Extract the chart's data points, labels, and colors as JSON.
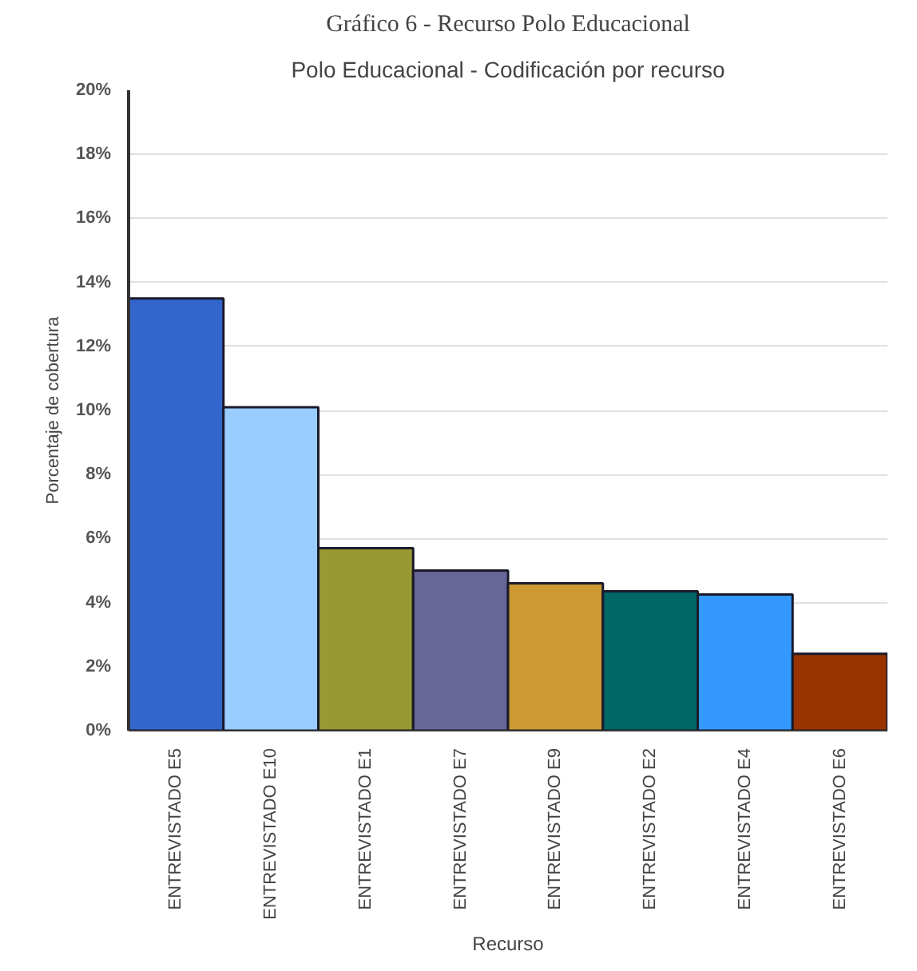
{
  "chart_data": {
    "type": "bar",
    "title": "Polo Educacional - Codificación por recurso",
    "annotations": [
      "Gráfico 6 - Recurso Polo Educacional"
    ],
    "xlabel": "Recurso",
    "ylabel": "Porcentaje de cobertura",
    "categories": [
      "ENTREVISTADO E5",
      "ENTREVISTADO E10",
      "ENTREVISTADO E1",
      "ENTREVISTADO E7",
      "ENTREVISTADO E9",
      "ENTREVISTADO E2",
      "ENTREVISTADO E4",
      "ENTREVISTADO E6"
    ],
    "values": [
      13.5,
      10.1,
      5.7,
      5.0,
      4.6,
      4.35,
      4.25,
      2.4
    ],
    "colors": [
      "#3366cc",
      "#99ccff",
      "#999933",
      "#666699",
      "#cc9933",
      "#006666",
      "#3399ff",
      "#993300"
    ],
    "ylim": [
      0,
      20
    ],
    "yticks": [
      {
        "value": 0,
        "label": "0%"
      },
      {
        "value": 2,
        "label": "2%"
      },
      {
        "value": 4,
        "label": "4%"
      },
      {
        "value": 6,
        "label": "6%"
      },
      {
        "value": 8,
        "label": "8%"
      },
      {
        "value": 10,
        "label": "10%"
      },
      {
        "value": 12,
        "label": "12%"
      },
      {
        "value": 14,
        "label": "14%"
      },
      {
        "value": 16,
        "label": "16%"
      },
      {
        "value": 18,
        "label": "18%"
      },
      {
        "value": 20,
        "label": "20%"
      }
    ],
    "grid": "y"
  }
}
